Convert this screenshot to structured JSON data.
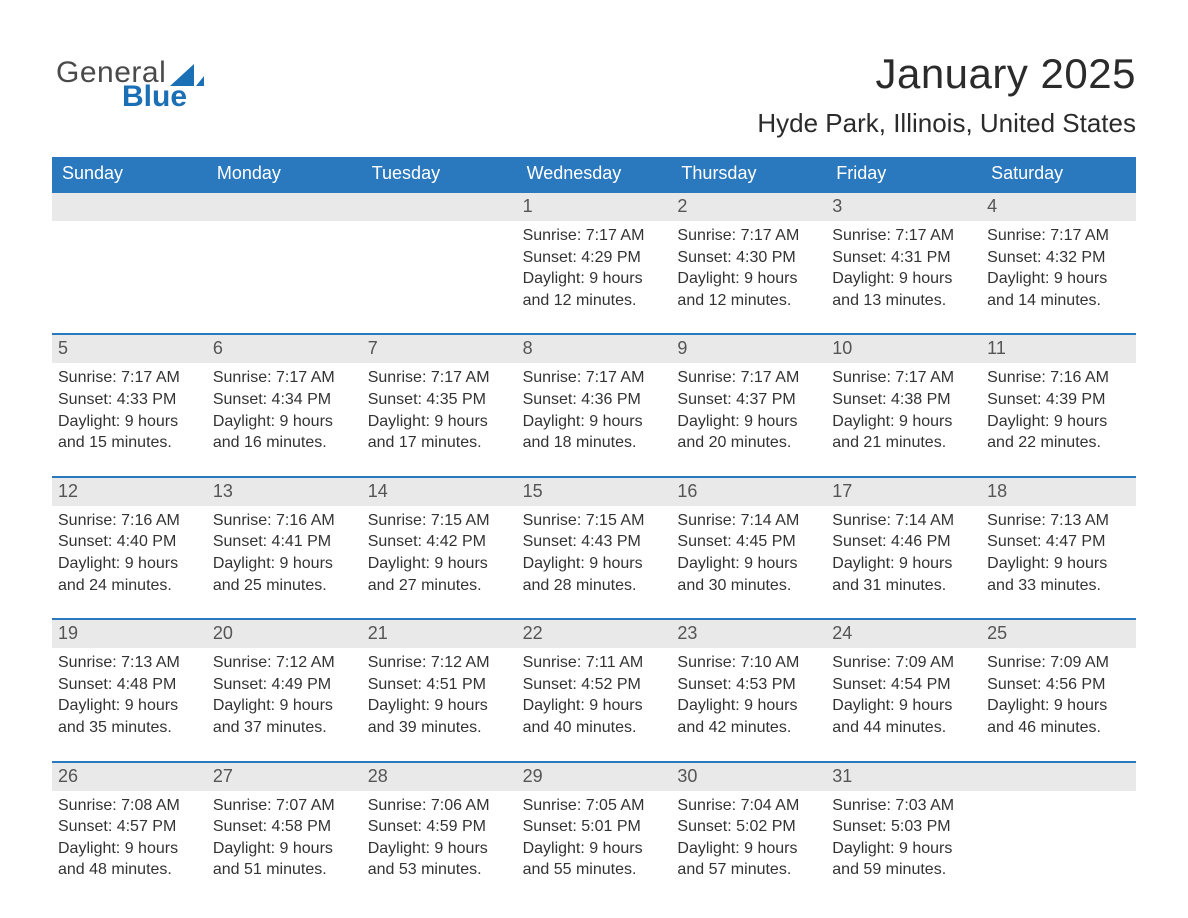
{
  "colors": {
    "header_blue": "#2a78be",
    "logo_blue": "#1a6fb5",
    "logo_gray": "#4a4a4a",
    "daybar_bg": "#e9e9e9",
    "daybar_border": "#2a78be",
    "text": "#333333",
    "page_bg": "#ffffff"
  },
  "logo": {
    "word1": "General",
    "word2": "Blue"
  },
  "title": {
    "month": "January 2025",
    "location": "Hyde Park, Illinois, United States"
  },
  "days_of_week": [
    "Sunday",
    "Monday",
    "Tuesday",
    "Wednesday",
    "Thursday",
    "Friday",
    "Saturday"
  ],
  "calendar": {
    "type": "table",
    "columns": 7,
    "rows": 5,
    "weeks": [
      [
        null,
        null,
        null,
        {
          "n": "1",
          "sunrise": "Sunrise: 7:17 AM",
          "sunset": "Sunset: 4:29 PM",
          "dl1": "Daylight: 9 hours",
          "dl2": "and 12 minutes."
        },
        {
          "n": "2",
          "sunrise": "Sunrise: 7:17 AM",
          "sunset": "Sunset: 4:30 PM",
          "dl1": "Daylight: 9 hours",
          "dl2": "and 12 minutes."
        },
        {
          "n": "3",
          "sunrise": "Sunrise: 7:17 AM",
          "sunset": "Sunset: 4:31 PM",
          "dl1": "Daylight: 9 hours",
          "dl2": "and 13 minutes."
        },
        {
          "n": "4",
          "sunrise": "Sunrise: 7:17 AM",
          "sunset": "Sunset: 4:32 PM",
          "dl1": "Daylight: 9 hours",
          "dl2": "and 14 minutes."
        }
      ],
      [
        {
          "n": "5",
          "sunrise": "Sunrise: 7:17 AM",
          "sunset": "Sunset: 4:33 PM",
          "dl1": "Daylight: 9 hours",
          "dl2": "and 15 minutes."
        },
        {
          "n": "6",
          "sunrise": "Sunrise: 7:17 AM",
          "sunset": "Sunset: 4:34 PM",
          "dl1": "Daylight: 9 hours",
          "dl2": "and 16 minutes."
        },
        {
          "n": "7",
          "sunrise": "Sunrise: 7:17 AM",
          "sunset": "Sunset: 4:35 PM",
          "dl1": "Daylight: 9 hours",
          "dl2": "and 17 minutes."
        },
        {
          "n": "8",
          "sunrise": "Sunrise: 7:17 AM",
          "sunset": "Sunset: 4:36 PM",
          "dl1": "Daylight: 9 hours",
          "dl2": "and 18 minutes."
        },
        {
          "n": "9",
          "sunrise": "Sunrise: 7:17 AM",
          "sunset": "Sunset: 4:37 PM",
          "dl1": "Daylight: 9 hours",
          "dl2": "and 20 minutes."
        },
        {
          "n": "10",
          "sunrise": "Sunrise: 7:17 AM",
          "sunset": "Sunset: 4:38 PM",
          "dl1": "Daylight: 9 hours",
          "dl2": "and 21 minutes."
        },
        {
          "n": "11",
          "sunrise": "Sunrise: 7:16 AM",
          "sunset": "Sunset: 4:39 PM",
          "dl1": "Daylight: 9 hours",
          "dl2": "and 22 minutes."
        }
      ],
      [
        {
          "n": "12",
          "sunrise": "Sunrise: 7:16 AM",
          "sunset": "Sunset: 4:40 PM",
          "dl1": "Daylight: 9 hours",
          "dl2": "and 24 minutes."
        },
        {
          "n": "13",
          "sunrise": "Sunrise: 7:16 AM",
          "sunset": "Sunset: 4:41 PM",
          "dl1": "Daylight: 9 hours",
          "dl2": "and 25 minutes."
        },
        {
          "n": "14",
          "sunrise": "Sunrise: 7:15 AM",
          "sunset": "Sunset: 4:42 PM",
          "dl1": "Daylight: 9 hours",
          "dl2": "and 27 minutes."
        },
        {
          "n": "15",
          "sunrise": "Sunrise: 7:15 AM",
          "sunset": "Sunset: 4:43 PM",
          "dl1": "Daylight: 9 hours",
          "dl2": "and 28 minutes."
        },
        {
          "n": "16",
          "sunrise": "Sunrise: 7:14 AM",
          "sunset": "Sunset: 4:45 PM",
          "dl1": "Daylight: 9 hours",
          "dl2": "and 30 minutes."
        },
        {
          "n": "17",
          "sunrise": "Sunrise: 7:14 AM",
          "sunset": "Sunset: 4:46 PM",
          "dl1": "Daylight: 9 hours",
          "dl2": "and 31 minutes."
        },
        {
          "n": "18",
          "sunrise": "Sunrise: 7:13 AM",
          "sunset": "Sunset: 4:47 PM",
          "dl1": "Daylight: 9 hours",
          "dl2": "and 33 minutes."
        }
      ],
      [
        {
          "n": "19",
          "sunrise": "Sunrise: 7:13 AM",
          "sunset": "Sunset: 4:48 PM",
          "dl1": "Daylight: 9 hours",
          "dl2": "and 35 minutes."
        },
        {
          "n": "20",
          "sunrise": "Sunrise: 7:12 AM",
          "sunset": "Sunset: 4:49 PM",
          "dl1": "Daylight: 9 hours",
          "dl2": "and 37 minutes."
        },
        {
          "n": "21",
          "sunrise": "Sunrise: 7:12 AM",
          "sunset": "Sunset: 4:51 PM",
          "dl1": "Daylight: 9 hours",
          "dl2": "and 39 minutes."
        },
        {
          "n": "22",
          "sunrise": "Sunrise: 7:11 AM",
          "sunset": "Sunset: 4:52 PM",
          "dl1": "Daylight: 9 hours",
          "dl2": "and 40 minutes."
        },
        {
          "n": "23",
          "sunrise": "Sunrise: 7:10 AM",
          "sunset": "Sunset: 4:53 PM",
          "dl1": "Daylight: 9 hours",
          "dl2": "and 42 minutes."
        },
        {
          "n": "24",
          "sunrise": "Sunrise: 7:09 AM",
          "sunset": "Sunset: 4:54 PM",
          "dl1": "Daylight: 9 hours",
          "dl2": "and 44 minutes."
        },
        {
          "n": "25",
          "sunrise": "Sunrise: 7:09 AM",
          "sunset": "Sunset: 4:56 PM",
          "dl1": "Daylight: 9 hours",
          "dl2": "and 46 minutes."
        }
      ],
      [
        {
          "n": "26",
          "sunrise": "Sunrise: 7:08 AM",
          "sunset": "Sunset: 4:57 PM",
          "dl1": "Daylight: 9 hours",
          "dl2": "and 48 minutes."
        },
        {
          "n": "27",
          "sunrise": "Sunrise: 7:07 AM",
          "sunset": "Sunset: 4:58 PM",
          "dl1": "Daylight: 9 hours",
          "dl2": "and 51 minutes."
        },
        {
          "n": "28",
          "sunrise": "Sunrise: 7:06 AM",
          "sunset": "Sunset: 4:59 PM",
          "dl1": "Daylight: 9 hours",
          "dl2": "and 53 minutes."
        },
        {
          "n": "29",
          "sunrise": "Sunrise: 7:05 AM",
          "sunset": "Sunset: 5:01 PM",
          "dl1": "Daylight: 9 hours",
          "dl2": "and 55 minutes."
        },
        {
          "n": "30",
          "sunrise": "Sunrise: 7:04 AM",
          "sunset": "Sunset: 5:02 PM",
          "dl1": "Daylight: 9 hours",
          "dl2": "and 57 minutes."
        },
        {
          "n": "31",
          "sunrise": "Sunrise: 7:03 AM",
          "sunset": "Sunset: 5:03 PM",
          "dl1": "Daylight: 9 hours",
          "dl2": "and 59 minutes."
        },
        null
      ]
    ]
  }
}
